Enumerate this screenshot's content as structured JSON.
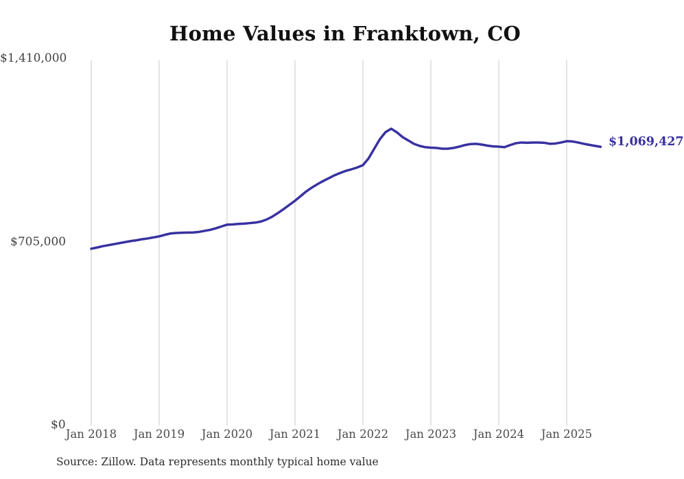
{
  "page": {
    "background": "#ffffff"
  },
  "chart": {
    "title": "Home Values in Franktown, CO",
    "source": "Source: Zillow. Data represents monthly typical home value",
    "end_label": "$1,069,427",
    "colors": {
      "line": "#3831a0",
      "grid": "#c9c9c9",
      "title": "#111111",
      "axis_labels": "#4a4a4a",
      "end_label": "#3831a0",
      "source": "#2b2b2b"
    }
  },
  "chart_data": {
    "type": "line",
    "title": "Home Values in Franktown, CO",
    "series_name": "Typical home value (monthly)",
    "x_unit": "month",
    "months": [
      "2018-01",
      "2018-02",
      "2018-03",
      "2018-04",
      "2018-05",
      "2018-06",
      "2018-07",
      "2018-08",
      "2018-09",
      "2018-10",
      "2018-11",
      "2018-12",
      "2019-01",
      "2019-02",
      "2019-03",
      "2019-04",
      "2019-05",
      "2019-06",
      "2019-07",
      "2019-08",
      "2019-09",
      "2019-10",
      "2019-11",
      "2019-12",
      "2020-01",
      "2020-02",
      "2020-03",
      "2020-04",
      "2020-05",
      "2020-06",
      "2020-07",
      "2020-08",
      "2020-09",
      "2020-10",
      "2020-11",
      "2020-12",
      "2021-01",
      "2021-02",
      "2021-03",
      "2021-04",
      "2021-05",
      "2021-06",
      "2021-07",
      "2021-08",
      "2021-09",
      "2021-10",
      "2021-11",
      "2021-12",
      "2022-01",
      "2022-02",
      "2022-03",
      "2022-04",
      "2022-05",
      "2022-06",
      "2022-07",
      "2022-08",
      "2022-09",
      "2022-10",
      "2022-11",
      "2022-12",
      "2023-01",
      "2023-02",
      "2023-03",
      "2023-04",
      "2023-05",
      "2023-06",
      "2023-07",
      "2023-08",
      "2023-09",
      "2023-10",
      "2023-11",
      "2023-12",
      "2024-01",
      "2024-02",
      "2024-03",
      "2024-04",
      "2024-05",
      "2024-06",
      "2024-07",
      "2024-08",
      "2024-09",
      "2024-10",
      "2024-11",
      "2024-12",
      "2025-01",
      "2025-02",
      "2025-03",
      "2025-04",
      "2025-05",
      "2025-06",
      "2025-07"
    ],
    "values": [
      677400,
      682000,
      687000,
      691000,
      695000,
      699000,
      703000,
      707000,
      710000,
      714000,
      717000,
      721000,
      725000,
      731000,
      736000,
      738000,
      739000,
      739500,
      740000,
      742000,
      746000,
      750000,
      756000,
      763000,
      770000,
      771000,
      773000,
      774000,
      776000,
      778000,
      782000,
      790000,
      801000,
      815000,
      830000,
      846000,
      862000,
      880000,
      898000,
      913000,
      926000,
      938000,
      949000,
      960000,
      969000,
      977000,
      983000,
      990000,
      999000,
      1025000,
      1062000,
      1099000,
      1126000,
      1139000,
      1125000,
      1107000,
      1094000,
      1081000,
      1073000,
      1068000,
      1066000,
      1065000,
      1062000,
      1062000,
      1065000,
      1070000,
      1076000,
      1080000,
      1081000,
      1078000,
      1074000,
      1071000,
      1070000,
      1068000,
      1076000,
      1083000,
      1086000,
      1085000,
      1086000,
      1086000,
      1085000,
      1081000,
      1082000,
      1086000,
      1091000,
      1090000,
      1086000,
      1081000,
      1077000,
      1073000,
      1069427
    ],
    "xticklabels": [
      "Jan 2018",
      "Jan 2019",
      "Jan 2020",
      "Jan 2021",
      "Jan 2022",
      "Jan 2023",
      "Jan 2024",
      "Jan 2025"
    ],
    "yticks": [
      {
        "label": "$1,410,000",
        "value": 1410000
      },
      {
        "label": "$705,000",
        "value": 705000
      },
      {
        "label": "$0",
        "value": 0
      }
    ],
    "ylim": [
      0,
      1410000
    ],
    "grid": "vertical-only",
    "legend": "none",
    "end_annotation": {
      "text": "$1,069,427",
      "value": 1069427,
      "at": "2025-07"
    }
  }
}
